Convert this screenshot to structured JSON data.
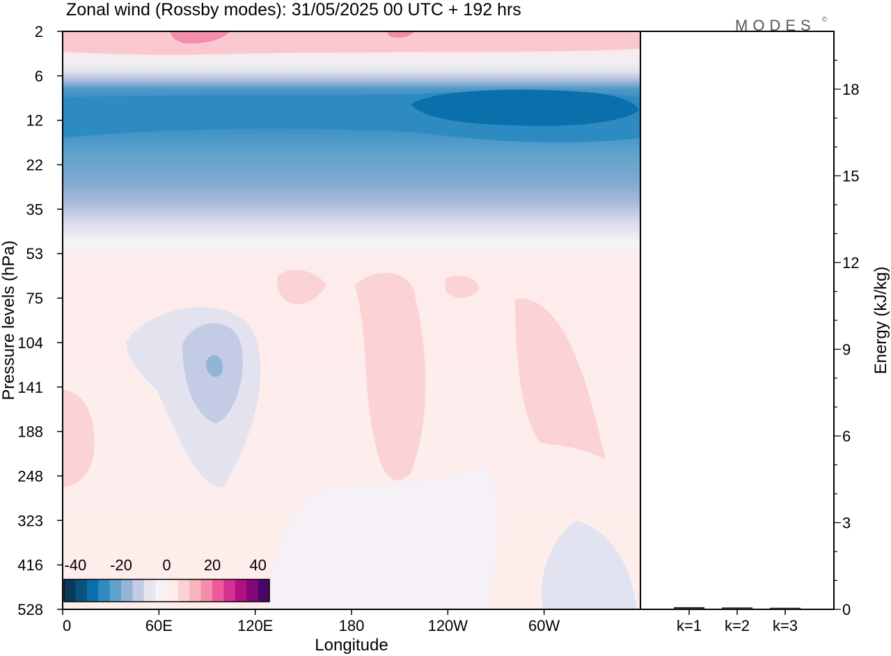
{
  "chart_data": {
    "type": "heatmap",
    "title": "Zonal wind (Rossby modes):  31/05/2025  00 UTC  + 192 hrs",
    "logo": "MODES",
    "logo_mark": "©",
    "xlabel": "Longitude",
    "ylabel": "Pressure levels (hPa)",
    "x_ticks": [
      "0",
      "60E",
      "120E",
      "180",
      "120W",
      "60W"
    ],
    "x_tick_values": [
      0,
      60,
      120,
      180,
      240,
      300
    ],
    "xlim": [
      0,
      360
    ],
    "y_ticks": [
      "2",
      "6",
      "12",
      "22",
      "35",
      "53",
      "75",
      "104",
      "141",
      "188",
      "248",
      "323",
      "416",
      "528"
    ],
    "colorbar": {
      "tick_labels": [
        "-40",
        "-20",
        "0",
        "20",
        "40"
      ],
      "levels": [
        -45,
        -40,
        -35,
        -30,
        -25,
        -20,
        -15,
        -10,
        -5,
        0,
        5,
        10,
        15,
        20,
        25,
        30,
        35,
        40,
        45
      ],
      "colors": [
        "#0b3a5a",
        "#08527f",
        "#0a6fab",
        "#2d8bc2",
        "#5ea3cc",
        "#94b4d6",
        "#c3cce4",
        "#e6e6f0",
        "#f6f2f8",
        "#fdeceb",
        "#fbd3d4",
        "#f8b3bd",
        "#f48cab",
        "#ec5a9c",
        "#d63090",
        "#b21083",
        "#82077a",
        "#4d0467"
      ]
    },
    "approx_field": [
      {
        "level": "2",
        "u": 5
      },
      {
        "level": "6",
        "u": -15
      },
      {
        "level": "12",
        "u": -35
      },
      {
        "level": "22",
        "u": -25
      },
      {
        "level": "35",
        "u": -12
      },
      {
        "level": "53",
        "u": 2
      },
      {
        "level": "104",
        "u": -10,
        "note": "min near 95E"
      },
      {
        "level": "188",
        "u": 4
      },
      {
        "level": "528",
        "u": 1
      }
    ],
    "energy_panel": {
      "ylabel": "Energy (kJ/kg)",
      "y_ticks": [
        "0",
        "3",
        "6",
        "9",
        "12",
        "15",
        "18"
      ],
      "y_tick_values": [
        0,
        3,
        6,
        9,
        12,
        15,
        18
      ],
      "ylim": [
        0,
        20
      ],
      "categories": [
        "k=1",
        "k=2",
        "k=3"
      ],
      "values": [
        0.05,
        0.04,
        0.03
      ]
    }
  }
}
